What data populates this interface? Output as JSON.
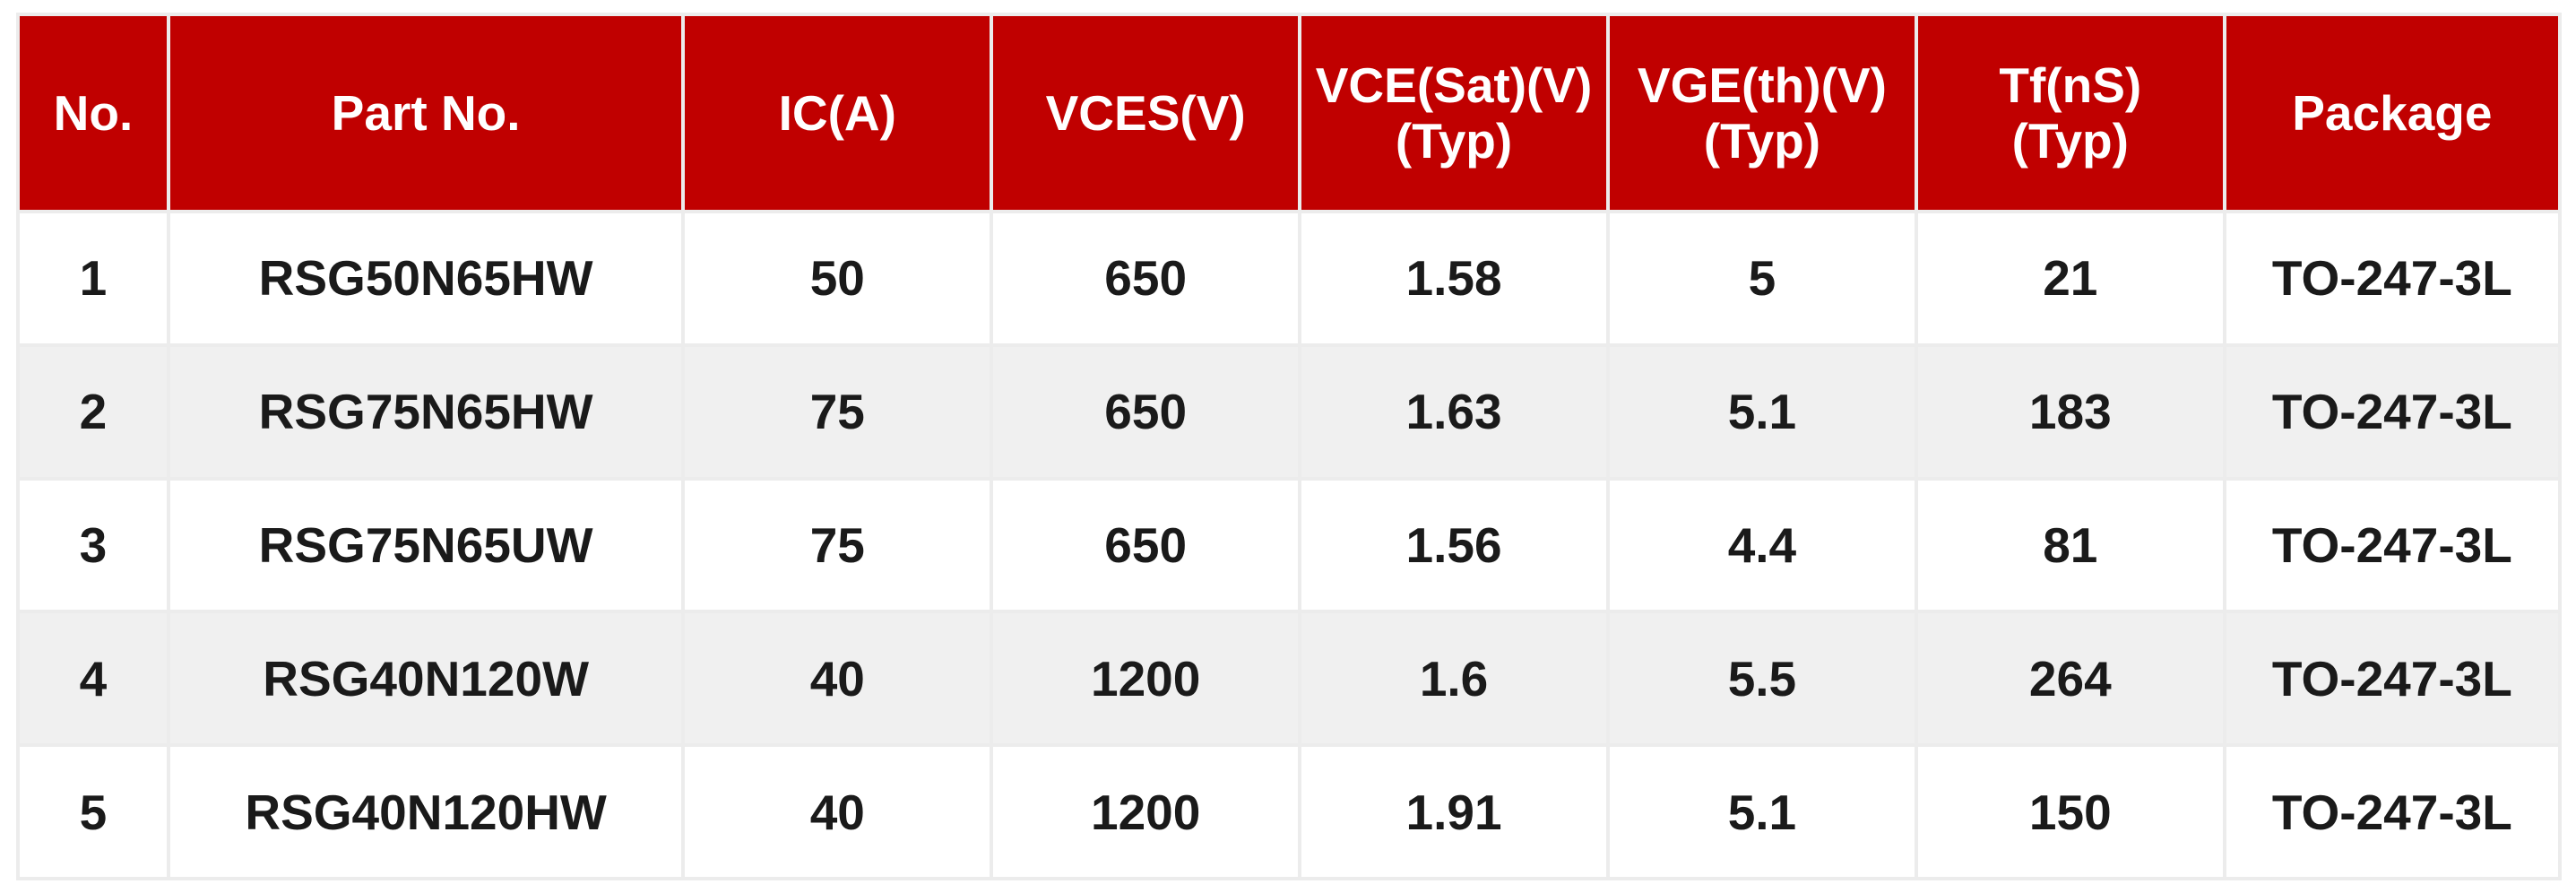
{
  "table": {
    "header_bg": "#c00000",
    "columns": [
      "No.",
      "Part No.",
      "IC(A)",
      "VCES(V)",
      "VCE(Sat)(V)\n(Typ)",
      "VGE(th)(V)\n(Typ)",
      "Tf(nS)\n(Typ)",
      "Package"
    ],
    "rows": [
      [
        "1",
        "RSG50N65HW",
        "50",
        "650",
        "1.58",
        "5",
        "21",
        "TO-247-3L"
      ],
      [
        "2",
        "RSG75N65HW",
        "75",
        "650",
        "1.63",
        "5.1",
        "183",
        "TO-247-3L"
      ],
      [
        "3",
        "RSG75N65UW",
        "75",
        "650",
        "1.56",
        "4.4",
        "81",
        "TO-247-3L"
      ],
      [
        "4",
        "RSG40N120W",
        "40",
        "1200",
        "1.6",
        "5.5",
        "264",
        "TO-247-3L"
      ],
      [
        "5",
        "RSG40N120HW",
        "40",
        "1200",
        "1.91",
        "5.1",
        "150",
        "TO-247-3L"
      ]
    ]
  }
}
